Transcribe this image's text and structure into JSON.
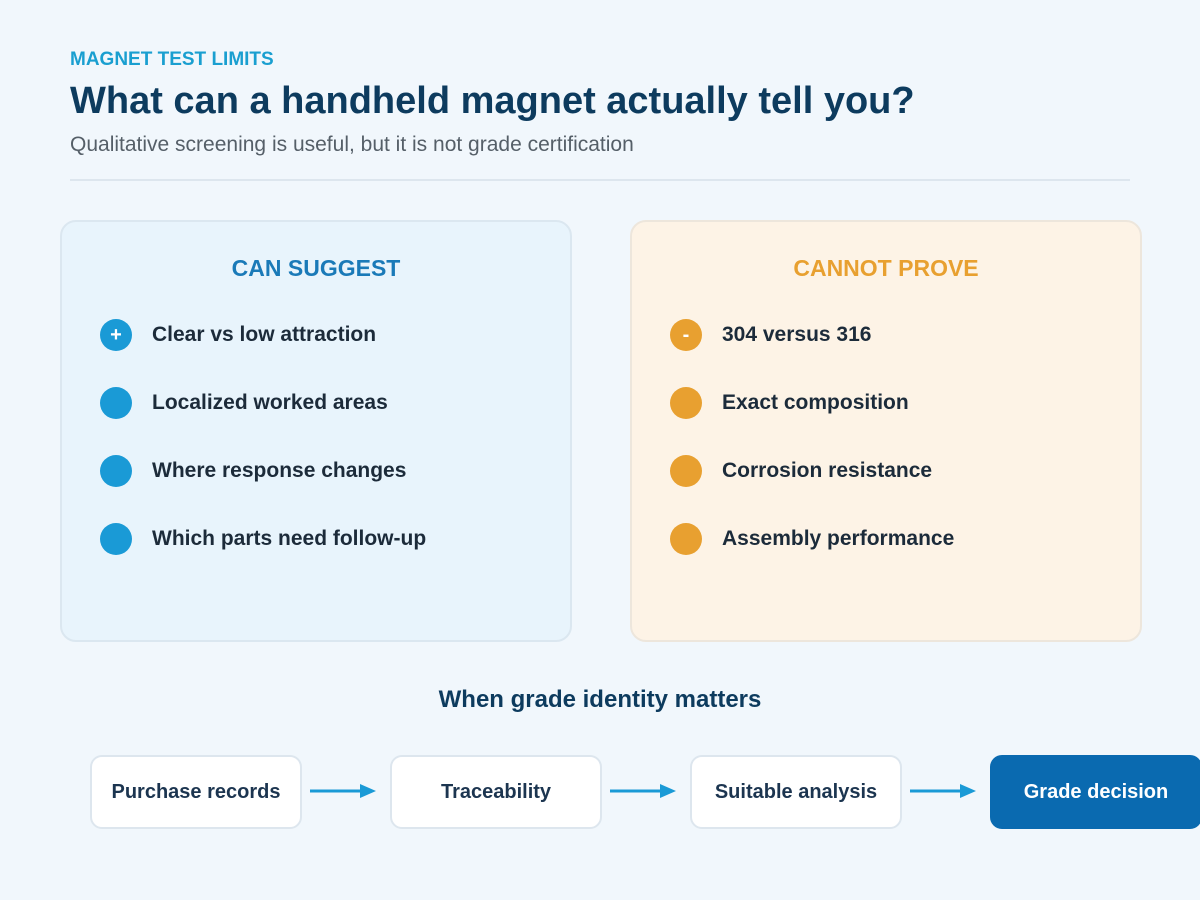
{
  "header": {
    "eyebrow": "MAGNET TEST LIMITS",
    "title": "What can a handheld magnet actually tell you?",
    "subtitle": "Qualitative screening is useful, but it is not grade certification"
  },
  "panels": [
    {
      "title": "CAN SUGGEST",
      "items": [
        {
          "marker": "+",
          "text": "Clear vs low attraction"
        },
        {
          "text": "Localized worked areas"
        },
        {
          "text": "Where response changes"
        },
        {
          "text": "Which parts need follow-up"
        }
      ]
    },
    {
      "title": "CANNOT PROVE",
      "items": [
        {
          "marker": "-",
          "text": "304 versus 316"
        },
        {
          "text": "Exact composition"
        },
        {
          "text": "Corrosion resistance"
        },
        {
          "text": "Assembly performance"
        }
      ]
    }
  ],
  "flow": {
    "title": "When grade identity matters",
    "steps": [
      "Purchase records",
      "Traceability",
      "Suitable analysis",
      "Grade decision"
    ]
  }
}
